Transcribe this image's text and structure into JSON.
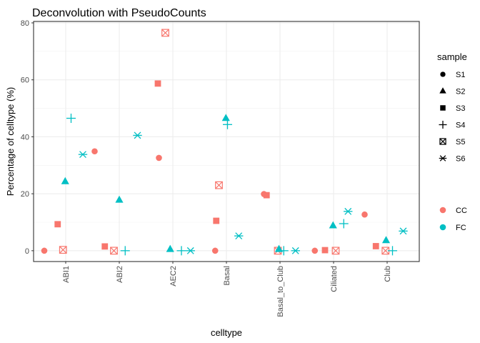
{
  "chart_data": {
    "type": "scatter",
    "title": "Deconvolution with PseudoCounts",
    "xlabel": "celltype",
    "ylabel": "Percentage of celltype (%)",
    "ylim": [
      -3.8,
      80.5
    ],
    "yticks": [
      0,
      20,
      40,
      60,
      80
    ],
    "grid": true,
    "categories": [
      "ABI1",
      "ABI2",
      "AEC2",
      "Basal",
      "Basal_to_Club",
      "Ciliated",
      "Club"
    ],
    "legend_position": "right",
    "shape_legend": {
      "title": "sample",
      "entries": [
        {
          "label": "S1",
          "shape": "circle"
        },
        {
          "label": "S2",
          "shape": "triangle"
        },
        {
          "label": "S3",
          "shape": "square"
        },
        {
          "label": "S4",
          "shape": "plus"
        },
        {
          "label": "S5",
          "shape": "boxx"
        },
        {
          "label": "S6",
          "shape": "asterisk"
        }
      ]
    },
    "color_legend": {
      "title": "",
      "entries": [
        {
          "label": "CC",
          "color": "#F8766D"
        },
        {
          "label": "FC",
          "color": "#00BFC4"
        }
      ]
    },
    "points": [
      {
        "celltype": "ABI1",
        "sample": "S1",
        "group": "CC",
        "x": 0.6,
        "y": 0.0
      },
      {
        "celltype": "ABI1",
        "sample": "S3",
        "group": "CC",
        "x": 0.85,
        "y": 9.3
      },
      {
        "celltype": "ABI1",
        "sample": "S5",
        "group": "CC",
        "x": 0.95,
        "y": 0.3
      },
      {
        "celltype": "ABI1",
        "sample": "S2",
        "group": "FC",
        "x": 0.99,
        "y": 24.3
      },
      {
        "celltype": "ABI1",
        "sample": "S4",
        "group": "FC",
        "x": 1.1,
        "y": 46.5
      },
      {
        "celltype": "ABI1",
        "sample": "S6",
        "group": "FC",
        "x": 1.32,
        "y": 33.8
      },
      {
        "celltype": "ABI1",
        "sample": "S1",
        "group": "CC",
        "x": 1.54,
        "y": 34.9
      },
      {
        "celltype": "ABI2",
        "sample": "S3",
        "group": "CC",
        "x": 1.73,
        "y": 1.5
      },
      {
        "celltype": "ABI2",
        "sample": "S5",
        "group": "CC",
        "x": 1.9,
        "y": 0.0
      },
      {
        "celltype": "ABI2",
        "sample": "S2",
        "group": "FC",
        "x": 2.0,
        "y": 17.8
      },
      {
        "celltype": "ABI2",
        "sample": "S4",
        "group": "FC",
        "x": 2.11,
        "y": 0.0
      },
      {
        "celltype": "ABI2",
        "sample": "S6",
        "group": "FC",
        "x": 2.34,
        "y": 40.5
      },
      {
        "celltype": "AEC2",
        "sample": "S1",
        "group": "CC",
        "x": 2.74,
        "y": 32.6
      },
      {
        "celltype": "AEC2",
        "sample": "S3",
        "group": "CC",
        "x": 2.72,
        "y": 58.7
      },
      {
        "celltype": "AEC2",
        "sample": "S5",
        "group": "CC",
        "x": 2.86,
        "y": 76.5
      },
      {
        "celltype": "AEC2",
        "sample": "S2",
        "group": "FC",
        "x": 2.95,
        "y": 0.5
      },
      {
        "celltype": "AEC2",
        "sample": "S4",
        "group": "FC",
        "x": 3.16,
        "y": 0.0
      },
      {
        "celltype": "AEC2",
        "sample": "S6",
        "group": "FC",
        "x": 3.33,
        "y": 0.0
      },
      {
        "celltype": "Basal",
        "sample": "S1",
        "group": "CC",
        "x": 3.79,
        "y": 0.0
      },
      {
        "celltype": "Basal",
        "sample": "S3",
        "group": "CC",
        "x": 3.81,
        "y": 10.5
      },
      {
        "celltype": "Basal",
        "sample": "S5",
        "group": "CC",
        "x": 3.86,
        "y": 23.0
      },
      {
        "celltype": "Basal",
        "sample": "S2",
        "group": "FC",
        "x": 3.99,
        "y": 46.5
      },
      {
        "celltype": "Basal",
        "sample": "S4",
        "group": "FC",
        "x": 4.02,
        "y": 44.3
      },
      {
        "celltype": "Basal",
        "sample": "S6",
        "group": "FC",
        "x": 4.23,
        "y": 5.2
      },
      {
        "celltype": "Basal_to_Club",
        "sample": "S1",
        "group": "CC",
        "x": 4.7,
        "y": 19.9
      },
      {
        "celltype": "Basal_to_Club",
        "sample": "S3",
        "group": "CC",
        "x": 4.75,
        "y": 19.5
      },
      {
        "celltype": "Basal_to_Club",
        "sample": "S5",
        "group": "CC",
        "x": 4.96,
        "y": 0.0
      },
      {
        "celltype": "Basal_to_Club",
        "sample": "S2",
        "group": "FC",
        "x": 4.98,
        "y": 0.5
      },
      {
        "celltype": "Basal_to_Club",
        "sample": "S4",
        "group": "FC",
        "x": 5.07,
        "y": 0.0
      },
      {
        "celltype": "Basal_to_Club",
        "sample": "S6",
        "group": "FC",
        "x": 5.29,
        "y": 0.0
      },
      {
        "celltype": "Ciliated",
        "sample": "S1",
        "group": "CC",
        "x": 5.65,
        "y": 0.0
      },
      {
        "celltype": "Ciliated",
        "sample": "S3",
        "group": "CC",
        "x": 5.84,
        "y": 0.2
      },
      {
        "celltype": "Ciliated",
        "sample": "S5",
        "group": "CC",
        "x": 6.04,
        "y": 0.0
      },
      {
        "celltype": "Ciliated",
        "sample": "S2",
        "group": "FC",
        "x": 5.99,
        "y": 8.8
      },
      {
        "celltype": "Ciliated",
        "sample": "S4",
        "group": "FC",
        "x": 6.19,
        "y": 9.5
      },
      {
        "celltype": "Ciliated",
        "sample": "S6",
        "group": "FC",
        "x": 6.27,
        "y": 13.8
      },
      {
        "celltype": "Ciliated",
        "sample": "S1",
        "group": "CC",
        "x": 6.58,
        "y": 12.7
      },
      {
        "celltype": "Club",
        "sample": "S3",
        "group": "CC",
        "x": 6.79,
        "y": 1.6
      },
      {
        "celltype": "Club",
        "sample": "S5",
        "group": "CC",
        "x": 6.97,
        "y": 0.0
      },
      {
        "celltype": "Club",
        "sample": "S2",
        "group": "FC",
        "x": 6.98,
        "y": 3.6
      },
      {
        "celltype": "Club",
        "sample": "S4",
        "group": "FC",
        "x": 7.1,
        "y": 0.0
      },
      {
        "celltype": "Club",
        "sample": "S6",
        "group": "FC",
        "x": 7.3,
        "y": 6.9
      }
    ]
  }
}
